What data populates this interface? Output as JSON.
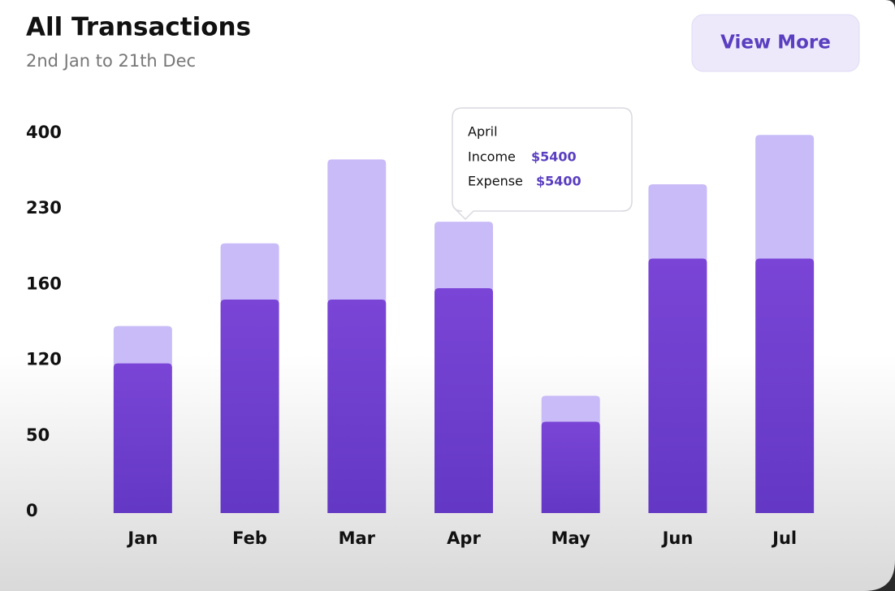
{
  "chart_data": {
    "type": "stacked-bar",
    "title": "All Transactions",
    "subtitle": "2nd Jan to 21th Dec",
    "categories": [
      "Jan",
      "Feb",
      "Mar",
      "Apr",
      "May",
      "Jun",
      "Jul"
    ],
    "series": [
      {
        "color": "#6f3fd1",
        "values": [
          117,
          152,
          152,
          158,
          63,
          184,
          184
        ]
      },
      {
        "color": "#c9bbf8",
        "values": [
          21,
          46,
          189,
          60,
          24,
          101,
          212
        ]
      }
    ],
    "ylim": [
      0,
      400
    ],
    "yticks": [
      0,
      50,
      120,
      160,
      230,
      400
    ],
    "grid": false
  },
  "button": {
    "label": "View More"
  },
  "tooltip": {
    "title": "April",
    "rows": [
      {
        "label": "Income",
        "value": "$5400"
      },
      {
        "label": "Expense",
        "value": "$5400"
      }
    ]
  }
}
